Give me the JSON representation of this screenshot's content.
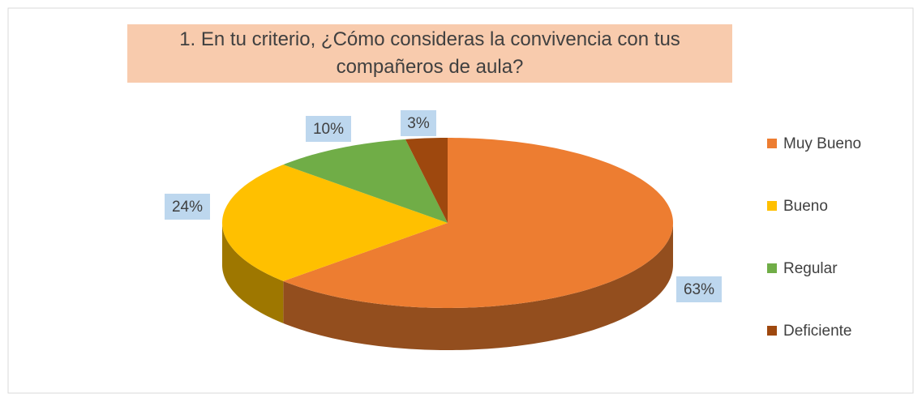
{
  "chart_data": {
    "type": "pie3d",
    "title": "1. En tu criterio, ¿Cómo consideras la convivencia con tus compañeros de aula?",
    "categories": [
      "Muy Bueno",
      "Bueno",
      "Regular",
      "Deficiente"
    ],
    "values": [
      63,
      24,
      10,
      3
    ],
    "value_labels": [
      "63%",
      "24%",
      "10%",
      "3%"
    ],
    "colors": [
      "#ed7d31",
      "#ffc000",
      "#70ad47",
      "#9e480e"
    ],
    "legend": "right"
  }
}
